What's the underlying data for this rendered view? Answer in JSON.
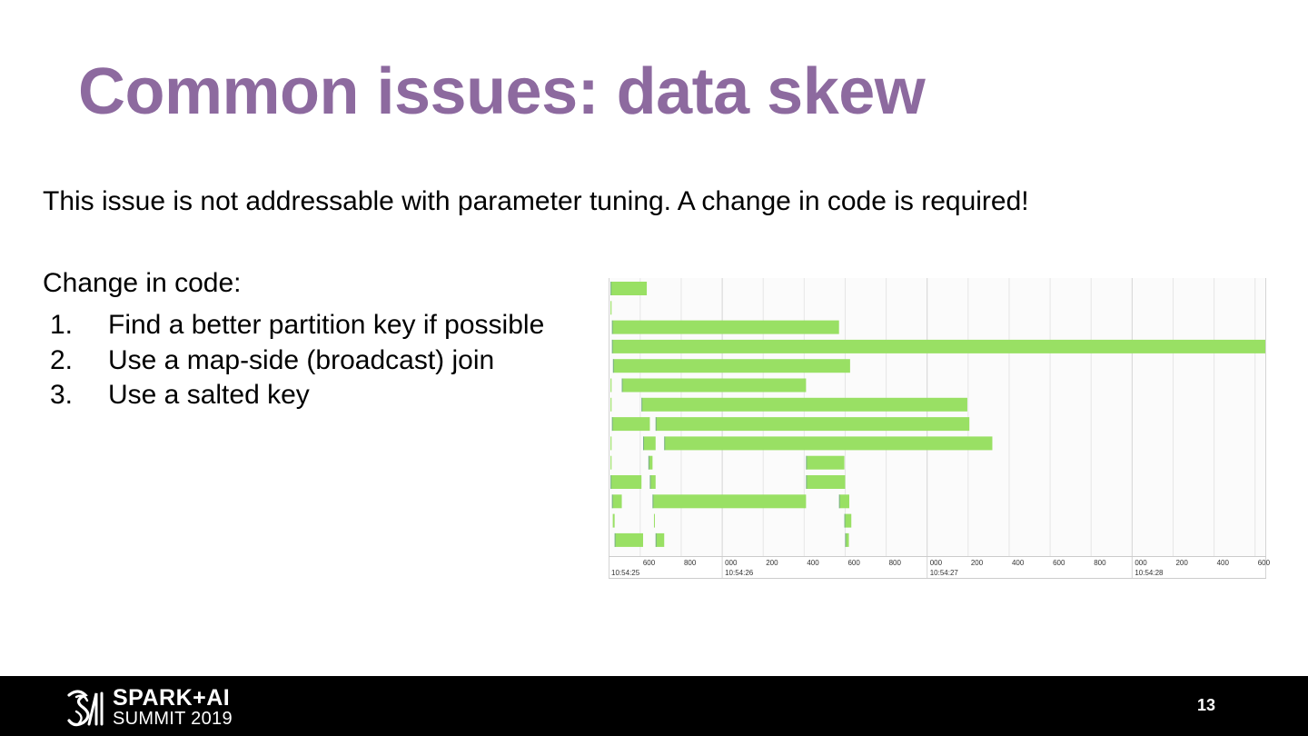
{
  "slide": {
    "title": "Common issues: data skew",
    "statement": "This issue is not addressable with parameter tuning. A change in code is required!",
    "subheading": "Change in code:",
    "steps": [
      {
        "number": "1.",
        "text": "Find a better partition key if possible"
      },
      {
        "number": "2.",
        "text": "Use a map-side (broadcast) join"
      },
      {
        "number": "3.",
        "text": "Use a salted key"
      }
    ],
    "page_number": "13"
  },
  "colors": {
    "title": "#8d6a9f",
    "bar": "#99e064",
    "bar_dark_edge": "#5f86a8",
    "grid": "#e6e6e6",
    "axis_text": "#333333",
    "footer_bg": "#000000"
  },
  "branding": {
    "logo_icon": "spark-ai-summit-logo-icon",
    "logo_line1": "SPARK+AI",
    "logo_line2": "SUMMIT 2019"
  },
  "chart_data": {
    "type": "timeline",
    "title": "",
    "x_unit": "ms",
    "xlim": [
      450,
      3650
    ],
    "major_ticks": [
      {
        "x": 1000,
        "label": "000",
        "time": "10:54:26"
      },
      {
        "x": 2000,
        "label": "000",
        "time": "10:54:27"
      },
      {
        "x": 3000,
        "label": "000",
        "time": "10:54:28"
      }
    ],
    "start_time_label": "10:54:25",
    "minor_ticks": [
      {
        "x": 600,
        "label": "600"
      },
      {
        "x": 800,
        "label": "800"
      },
      {
        "x": 1200,
        "label": "200"
      },
      {
        "x": 1400,
        "label": "400"
      },
      {
        "x": 1600,
        "label": "600"
      },
      {
        "x": 1800,
        "label": "800"
      },
      {
        "x": 2200,
        "label": "200"
      },
      {
        "x": 2400,
        "label": "400"
      },
      {
        "x": 2600,
        "label": "600"
      },
      {
        "x": 2800,
        "label": "800"
      },
      {
        "x": 3200,
        "label": "200"
      },
      {
        "x": 3400,
        "label": "400"
      },
      {
        "x": 3600,
        "label": "600"
      }
    ],
    "tasks": [
      {
        "row": 0,
        "start": 455,
        "end": 632
      },
      {
        "row": 1,
        "start": 455,
        "end": 460
      },
      {
        "row": 2,
        "start": 462,
        "end": 1570
      },
      {
        "row": 3,
        "start": 462,
        "end": 3650
      },
      {
        "row": 4,
        "start": 467,
        "end": 1624
      },
      {
        "row": 5,
        "start": 455,
        "end": 460
      },
      {
        "row": 5,
        "start": 510,
        "end": 1409
      },
      {
        "row": 6,
        "start": 455,
        "end": 460
      },
      {
        "row": 6,
        "start": 606,
        "end": 2196
      },
      {
        "row": 7,
        "start": 462,
        "end": 647
      },
      {
        "row": 7,
        "start": 675,
        "end": 2206
      },
      {
        "row": 8,
        "start": 455,
        "end": 460
      },
      {
        "row": 8,
        "start": 614,
        "end": 675
      },
      {
        "row": 8,
        "start": 717,
        "end": 2318
      },
      {
        "row": 9,
        "start": 455,
        "end": 460
      },
      {
        "row": 9,
        "start": 640,
        "end": 660
      },
      {
        "row": 9,
        "start": 1409,
        "end": 1596
      },
      {
        "row": 10,
        "start": 455,
        "end": 606
      },
      {
        "row": 10,
        "start": 647,
        "end": 675
      },
      {
        "row": 10,
        "start": 1409,
        "end": 1600
      },
      {
        "row": 11,
        "start": 462,
        "end": 510
      },
      {
        "row": 11,
        "start": 660,
        "end": 1409
      },
      {
        "row": 11,
        "start": 1570,
        "end": 1620
      },
      {
        "row": 12,
        "start": 466,
        "end": 475
      },
      {
        "row": 12,
        "start": 667,
        "end": 669
      },
      {
        "row": 12,
        "start": 1596,
        "end": 1630
      },
      {
        "row": 13,
        "start": 475,
        "end": 614
      },
      {
        "row": 13,
        "start": 675,
        "end": 717
      },
      {
        "row": 13,
        "start": 1600,
        "end": 1618
      }
    ],
    "grid": true,
    "legend": "none"
  }
}
